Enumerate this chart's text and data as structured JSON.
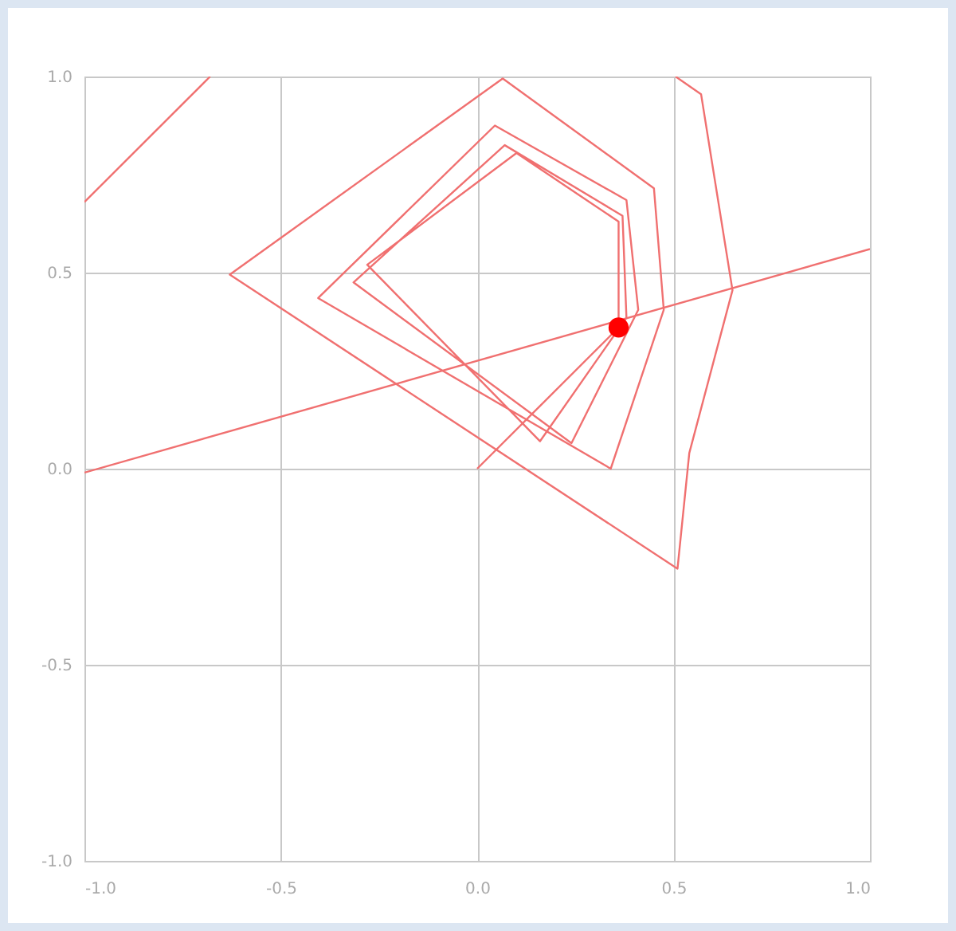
{
  "chart_data": {
    "type": "line",
    "xlim": [
      -1,
      1
    ],
    "ylim": [
      -1,
      1
    ],
    "xticks": [
      {
        "value": -1,
        "label": "-1.0"
      },
      {
        "value": -0.5,
        "label": "-0.5"
      },
      {
        "value": 0,
        "label": "0.0"
      },
      {
        "value": 0.5,
        "label": "0.5"
      },
      {
        "value": 1,
        "label": "1.0"
      }
    ],
    "yticks": [
      {
        "value": -1,
        "label": "-1.0"
      },
      {
        "value": -0.5,
        "label": "-0.5"
      },
      {
        "value": 0,
        "label": "0.0"
      },
      {
        "value": 0.5,
        "label": "0.5"
      },
      {
        "value": 1,
        "label": "1.0"
      }
    ],
    "grid": true,
    "series": [
      {
        "color": "#f07070",
        "x": [
          0.505,
          0.57,
          0.65,
          0.54,
          0.51,
          -0.63,
          0.065,
          0.45,
          0.475,
          0.34,
          -0.405,
          0.045,
          0.38,
          0.41,
          0.24,
          -0.315,
          0.07,
          0.37,
          0.38,
          0.16,
          -0.28,
          0.1,
          0.36,
          0.36
        ],
        "values": [
          1.0,
          0.955,
          0.455,
          0.04,
          -0.255,
          0.495,
          0.995,
          0.715,
          0.405,
          0.0,
          0.435,
          0.875,
          0.685,
          0.405,
          0.065,
          0.475,
          0.825,
          0.645,
          0.385,
          0.07,
          0.52,
          0.805,
          0.63,
          0.36
        ]
      },
      {
        "type": "line",
        "color": "#f07070",
        "x": [
          -1,
          1
        ],
        "values": [
          -0.01,
          0.56
        ]
      },
      {
        "type": "line",
        "color": "#f07070",
        "x": [
          -1,
          -0.68
        ],
        "values": [
          0.68,
          1.0
        ]
      },
      {
        "type": "line",
        "color": "#f07070",
        "x": [
          0,
          0.36
        ],
        "values": [
          0,
          0.36
        ]
      },
      {
        "type": "scatter",
        "color": "#ff0000",
        "marker": "circle",
        "x": [
          0.36
        ],
        "values": [
          0.36
        ]
      }
    ]
  }
}
